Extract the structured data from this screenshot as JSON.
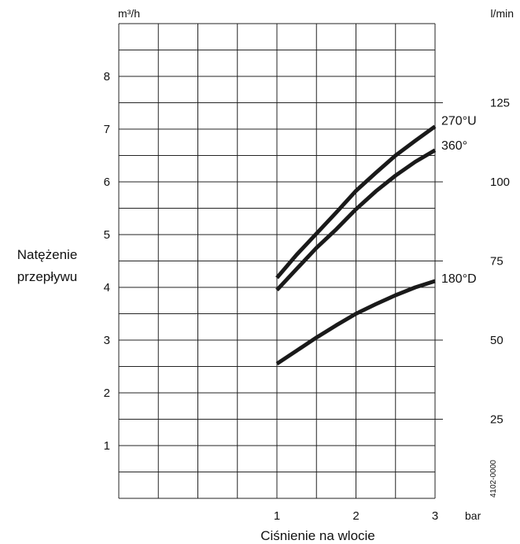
{
  "chart_data": {
    "type": "line",
    "ylabel_lines": [
      "Natężenie",
      "przepływu"
    ],
    "xlabel": "Ciśnienie na wlocie",
    "x_unit": "bar",
    "y_unit_left": "m³/h",
    "y_unit_right": "l/min",
    "xlim": [
      -1,
      3
    ],
    "ylim": [
      0,
      9
    ],
    "y2lim": [
      0,
      150
    ],
    "x_ticks": [
      1,
      2,
      3
    ],
    "x_tick_labels": [
      "1",
      "2",
      "3"
    ],
    "y_ticks": [
      1,
      2,
      3,
      4,
      5,
      6,
      7,
      8
    ],
    "y_tick_labels": [
      "1",
      "2",
      "3",
      "4",
      "5",
      "6",
      "7",
      "8"
    ],
    "y2_ticks": [
      25,
      50,
      75,
      100,
      125
    ],
    "y2_tick_labels": [
      "25",
      "50",
      "75",
      "100",
      "125"
    ],
    "grid": true,
    "code": "4102-0000",
    "series": [
      {
        "name": "270°U",
        "x": [
          1.0,
          1.25,
          1.5,
          1.75,
          2.0,
          2.25,
          2.5,
          2.75,
          3.0
        ],
        "values": [
          4.18,
          4.62,
          5.02,
          5.42,
          5.83,
          6.17,
          6.5,
          6.78,
          7.05
        ]
      },
      {
        "name": "360°",
        "x": [
          1.0,
          1.25,
          1.5,
          1.75,
          2.0,
          2.25,
          2.5,
          2.75,
          3.0
        ],
        "values": [
          3.95,
          4.35,
          4.75,
          5.1,
          5.48,
          5.82,
          6.12,
          6.38,
          6.6
        ]
      },
      {
        "name": "180°D",
        "x": [
          1.0,
          1.25,
          1.5,
          1.75,
          2.0,
          2.25,
          2.5,
          2.75,
          3.0
        ],
        "values": [
          2.55,
          2.8,
          3.05,
          3.28,
          3.5,
          3.68,
          3.85,
          4.0,
          4.12
        ]
      }
    ]
  }
}
